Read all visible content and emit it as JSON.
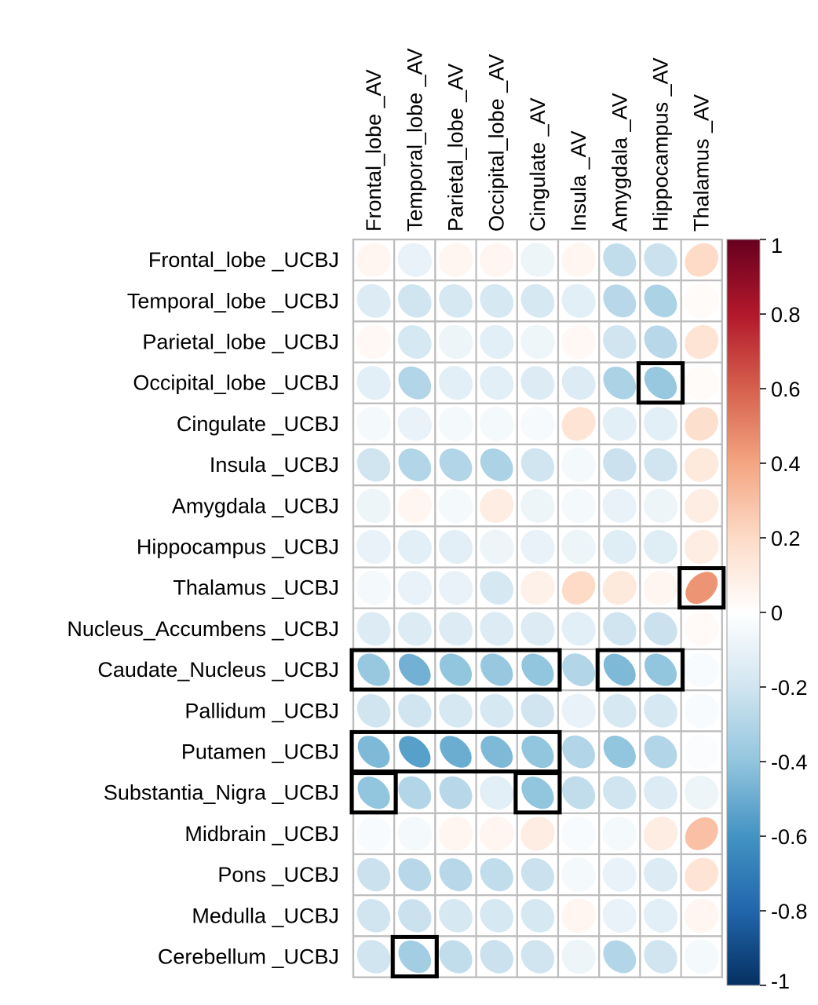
{
  "chart_data": {
    "type": "heatmap",
    "subtype": "correlation-ellipse",
    "title": "",
    "columns": [
      "Frontal_lobe _AV",
      "Temporal_lobe _AV",
      "Parietal_lobe _AV",
      "Occipital_lobe _AV",
      "Cingulate _AV",
      "Insula _AV",
      "Amygdala _AV",
      "Hippocampus _AV",
      "Thalamus _AV"
    ],
    "rows": [
      "Frontal_lobe _UCBJ",
      "Temporal_lobe _UCBJ",
      "Parietal_lobe _UCBJ",
      "Occipital_lobe _UCBJ",
      "Cingulate _UCBJ",
      "Insula _UCBJ",
      "Amygdala _UCBJ",
      "Hippocampus _UCBJ",
      "Thalamus _UCBJ",
      "Nucleus_Accumbens _UCBJ",
      "Caudate_Nucleus _UCBJ",
      "Pallidum _UCBJ",
      "Putamen _UCBJ",
      "Substantia_Nigra _UCBJ",
      "Midbrain _UCBJ",
      "Pons _UCBJ",
      "Medulla _UCBJ",
      "Cerebellum _UCBJ"
    ],
    "values": [
      [
        0.05,
        -0.1,
        0.05,
        0.05,
        -0.08,
        0.05,
        -0.25,
        -0.22,
        0.2
      ],
      [
        -0.15,
        -0.2,
        -0.18,
        -0.18,
        -0.18,
        -0.12,
        -0.28,
        -0.32,
        0.02
      ],
      [
        0.04,
        -0.18,
        -0.08,
        -0.12,
        -0.07,
        0.04,
        -0.2,
        -0.28,
        0.15
      ],
      [
        -0.12,
        -0.3,
        -0.12,
        -0.12,
        -0.15,
        -0.15,
        -0.32,
        -0.38,
        0.02
      ],
      [
        -0.05,
        -0.1,
        -0.05,
        -0.05,
        -0.04,
        0.15,
        -0.12,
        -0.12,
        0.18
      ],
      [
        -0.2,
        -0.3,
        -0.3,
        -0.32,
        -0.2,
        -0.05,
        -0.22,
        -0.2,
        0.12
      ],
      [
        -0.08,
        0.05,
        -0.05,
        0.1,
        -0.08,
        -0.05,
        -0.1,
        -0.08,
        0.1
      ],
      [
        -0.1,
        -0.12,
        -0.12,
        -0.08,
        -0.1,
        -0.08,
        -0.14,
        -0.14,
        0.1
      ],
      [
        -0.05,
        -0.1,
        -0.1,
        -0.18,
        0.08,
        0.2,
        0.12,
        0.05,
        0.45
      ],
      [
        -0.15,
        -0.15,
        -0.15,
        -0.15,
        -0.15,
        -0.12,
        -0.2,
        -0.22,
        0.03
      ],
      [
        -0.38,
        -0.48,
        -0.4,
        -0.38,
        -0.4,
        -0.3,
        -0.45,
        -0.4,
        -0.03
      ],
      [
        -0.2,
        -0.2,
        -0.18,
        -0.18,
        -0.2,
        -0.1,
        -0.18,
        -0.18,
        -0.03
      ],
      [
        -0.45,
        -0.55,
        -0.5,
        -0.45,
        -0.4,
        -0.3,
        -0.4,
        -0.3,
        -0.02
      ],
      [
        -0.4,
        -0.3,
        -0.28,
        -0.12,
        -0.4,
        -0.25,
        -0.2,
        -0.15,
        -0.08
      ],
      [
        -0.03,
        -0.05,
        0.05,
        0.05,
        0.1,
        -0.03,
        -0.05,
        0.1,
        0.3
      ],
      [
        -0.22,
        -0.28,
        -0.28,
        -0.25,
        -0.22,
        -0.05,
        -0.1,
        -0.15,
        0.15
      ],
      [
        -0.2,
        -0.22,
        -0.18,
        -0.18,
        -0.18,
        0.05,
        -0.1,
        -0.12,
        0.05
      ],
      [
        -0.2,
        -0.35,
        -0.25,
        -0.22,
        -0.2,
        -0.08,
        -0.3,
        -0.2,
        -0.05
      ]
    ],
    "highlight_boxes": [
      {
        "row_start": 3,
        "row_end": 3,
        "col_start": 7,
        "col_end": 7
      },
      {
        "row_start": 8,
        "row_end": 8,
        "col_start": 8,
        "col_end": 8
      },
      {
        "row_start": 10,
        "row_end": 10,
        "col_start": 0,
        "col_end": 4
      },
      {
        "row_start": 10,
        "row_end": 10,
        "col_start": 6,
        "col_end": 7
      },
      {
        "row_start": 12,
        "row_end": 12,
        "col_start": 0,
        "col_end": 4
      },
      {
        "row_start": 13,
        "row_end": 13,
        "col_start": 0,
        "col_end": 0
      },
      {
        "row_start": 13,
        "row_end": 13,
        "col_start": 4,
        "col_end": 4
      },
      {
        "row_start": 17,
        "row_end": 17,
        "col_start": 1,
        "col_end": 1
      }
    ],
    "colorbar": {
      "range": [
        -1,
        1
      ],
      "ticks": [
        "1",
        "0.8",
        "0.6",
        "0.4",
        "0.2",
        "0",
        "-0.2",
        "-0.4",
        "-0.6",
        "-0.8",
        "-1"
      ],
      "colors": [
        "#67001F",
        "#B2182B",
        "#D6604D",
        "#F4A582",
        "#FDDBC7",
        "#FFFFFF",
        "#D1E5F0",
        "#92C5DE",
        "#4393C3",
        "#2166AC",
        "#053061"
      ]
    },
    "grid": true,
    "legend_position": "right"
  }
}
